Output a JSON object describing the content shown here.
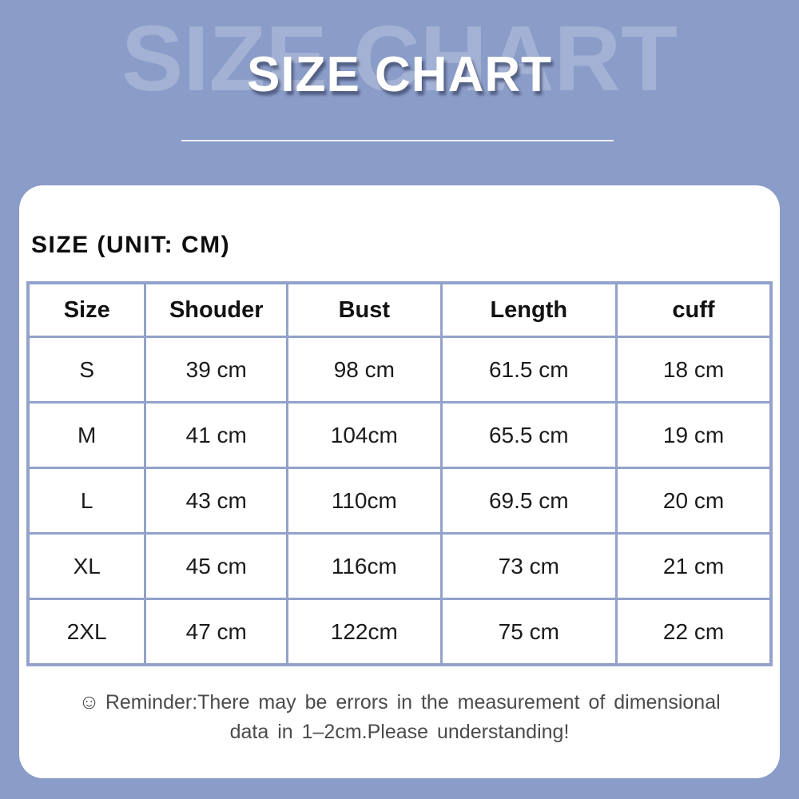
{
  "meta": {
    "background_color": "#8a9cc8",
    "card_color": "#ffffff",
    "table_border_color": "#92a2cb",
    "title_color": "#ffffff",
    "reminder_text_color": "#4b4b4b"
  },
  "header": {
    "watermark": "SIZE CHART",
    "title": "SIZE CHART"
  },
  "panel": {
    "heading": "SIZE (UNIT: CM)"
  },
  "chart_data": {
    "type": "table",
    "title": "SIZE CHART",
    "unit": "cm",
    "columns": [
      "Size",
      "Shouder",
      "Bust",
      "Length",
      "cuff"
    ],
    "rows": [
      [
        "S",
        "39 cm",
        "98 cm",
        "61.5 cm",
        "18 cm"
      ],
      [
        "M",
        "41 cm",
        "104cm",
        "65.5 cm",
        "19 cm"
      ],
      [
        "L",
        "43 cm",
        "110cm",
        "69.5 cm",
        "20 cm"
      ],
      [
        "XL",
        "45 cm",
        "116cm",
        "73 cm",
        "21 cm"
      ],
      [
        "2XL",
        "47 cm",
        "122cm",
        "75 cm",
        "22 cm"
      ]
    ],
    "numeric": {
      "sizes": [
        "S",
        "M",
        "L",
        "XL",
        "2XL"
      ],
      "shoulder_cm": [
        39,
        41,
        43,
        45,
        47
      ],
      "bust_cm": [
        98,
        104,
        110,
        116,
        122
      ],
      "length_cm": [
        61.5,
        65.5,
        69.5,
        73,
        75
      ],
      "cuff_cm": [
        18,
        19,
        20,
        21,
        22
      ]
    }
  },
  "reminder": {
    "icon_glyph": "☺",
    "line1": "Reminder:There may be errors in the measurement of dimensional",
    "line2": "data in 1–2cm.Please understanding!"
  }
}
